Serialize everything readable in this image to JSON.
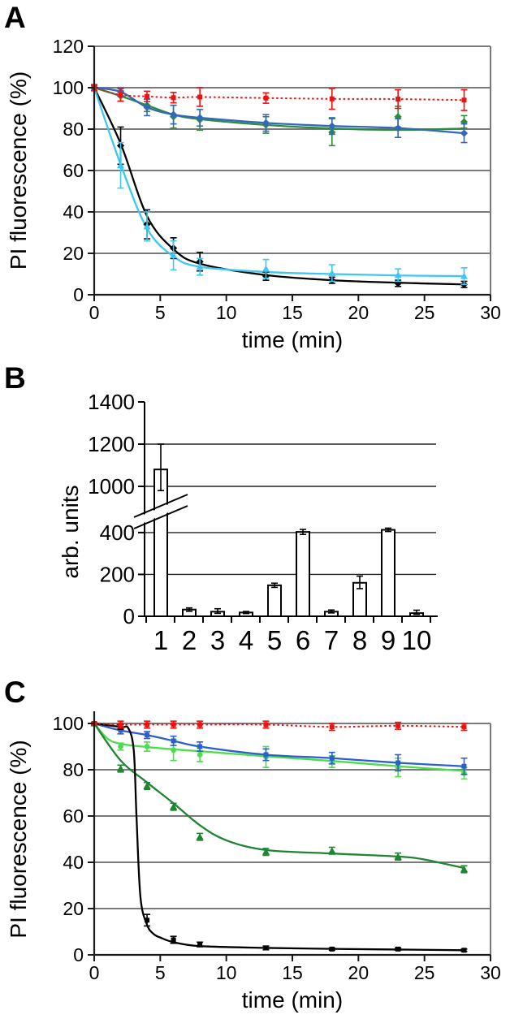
{
  "panels": {
    "a_label": "A",
    "b_label": "B",
    "c_label": "C"
  },
  "colors": {
    "grid_gray": "#7a7a7a",
    "axis_black": "#1a1a1a",
    "bar_fill": "#ffffff",
    "bar_stroke": "#000000"
  },
  "chart_data": [
    {
      "panel": "A",
      "type": "line",
      "xlabel": "time (min)",
      "ylabel": "PI fluorescence (%)",
      "xlim": [
        0,
        30
      ],
      "ylim": [
        0,
        120
      ],
      "xticks": [
        0,
        5,
        10,
        15,
        20,
        25,
        30
      ],
      "yticks": [
        0,
        20,
        40,
        60,
        80,
        100,
        120
      ],
      "grid": true,
      "x": [
        0,
        2,
        4,
        6,
        8,
        13,
        18,
        23,
        28
      ],
      "series": [
        {
          "name": "green-diamonds",
          "color": "#2E8B3A",
          "marker": "diamond",
          "line_style": "solid",
          "y": [
            100,
            96,
            91.5,
            86,
            84.5,
            82,
            78.5,
            86,
            83.5
          ],
          "err": [
            1,
            2.5,
            3,
            5.5,
            5,
            4,
            6.5,
            5,
            3
          ],
          "fit_y": [
            100,
            96,
            91.5,
            87,
            84.8,
            82,
            80.3,
            79.6,
            80.3
          ]
        },
        {
          "name": "blue-diamonds",
          "color": "#3268BE",
          "marker": "diamond",
          "line_style": "solid",
          "y": [
            100,
            98,
            90.5,
            87,
            85.5,
            83,
            81.5,
            80.5,
            78
          ],
          "err": [
            1,
            2,
            4,
            4.5,
            4,
            4,
            4,
            4.5,
            4.5
          ]
        },
        {
          "name": "black-diamonds",
          "color": "#000000",
          "marker": "diamond",
          "line_style": "solid",
          "y": [
            100,
            72,
            34,
            22.5,
            16,
            9,
            7,
            5.5,
            5
          ],
          "err": [
            0,
            9,
            7,
            5,
            4.5,
            2,
            1.5,
            1.5,
            1.5
          ],
          "fit_y": [
            100,
            73,
            38,
            22,
            15,
            9.5,
            7,
            5.8,
            5
          ]
        },
        {
          "name": "cyan-triangles",
          "color": "#3EC7F2",
          "marker": "triangle",
          "line_style": "solid",
          "y": [
            100,
            62.5,
            33,
            19,
            13.5,
            12.5,
            10.5,
            9.5,
            9
          ],
          "err": [
            0,
            11,
            7,
            7,
            4,
            4.5,
            4,
            3,
            4
          ],
          "fit_y": [
            100,
            63,
            32,
            18.5,
            13.5,
            11,
            10,
            9.3,
            9
          ]
        },
        {
          "name": "red-squares-dotted",
          "color": "#EE1111",
          "marker": "square",
          "line_style": "dotted",
          "y": [
            100,
            96.5,
            95.8,
            95.2,
            95.5,
            95,
            94.6,
            94.5,
            94
          ],
          "err": [
            1.5,
            3,
            2.5,
            2.5,
            4.5,
            2.5,
            5,
            4.5,
            5
          ]
        }
      ]
    },
    {
      "panel": "B",
      "type": "bar",
      "ylabel": "arb. units",
      "categories": [
        "1",
        "2",
        "3",
        "4",
        "5",
        "6",
        "7",
        "8",
        "9",
        "10"
      ],
      "values": [
        1080,
        32,
        22,
        18,
        148,
        403,
        22,
        160,
        413,
        15
      ],
      "err_plus": [
        120,
        8,
        14,
        5,
        10,
        12,
        8,
        32,
        8,
        14
      ],
      "err_minus": [
        100,
        8,
        8,
        5,
        10,
        12,
        6,
        28,
        8,
        6
      ],
      "yticks": [
        0,
        200,
        400,
        1000,
        1200,
        1400
      ],
      "gridline_values": [
        200,
        400,
        1000,
        1200
      ],
      "axis_break": {
        "lower_max": 450,
        "upper_min": 950
      }
    },
    {
      "panel": "C",
      "type": "line",
      "xlabel": "time (min)",
      "ylabel": "PI fluorescence (%)",
      "xlim": [
        0,
        30
      ],
      "ylim": [
        0,
        100
      ],
      "xticks": [
        0,
        5,
        10,
        15,
        20,
        25,
        30
      ],
      "yticks": [
        0,
        20,
        40,
        60,
        80,
        100
      ],
      "grid": true,
      "x": [
        0,
        2,
        4,
        6,
        8,
        13,
        18,
        23,
        28
      ],
      "series": [
        {
          "name": "light-green-circles",
          "color": "#4CDC4C",
          "marker": "circle",
          "line_style": "solid",
          "y": [
            100,
            90,
            90,
            88.5,
            86.5,
            85.5,
            83.5,
            81,
            78.5
          ],
          "err": [
            0.5,
            1.5,
            2,
            4.5,
            3,
            4.5,
            2.5,
            4,
            2.5
          ],
          "fit_x": [
            0,
            1,
            2,
            4,
            6,
            8,
            13,
            18,
            23,
            28
          ],
          "fit_y": [
            100,
            93.5,
            91.2,
            89.8,
            88.8,
            88,
            85.8,
            83.8,
            81.5,
            79.5
          ]
        },
        {
          "name": "blue-squares",
          "color": "#2B5FCE",
          "marker": "square",
          "line_style": "solid",
          "y": [
            100,
            97,
            95,
            92.5,
            90,
            86.5,
            85,
            83,
            81.5
          ],
          "err": [
            0.5,
            1.5,
            1.5,
            2,
            2,
            2.5,
            2.5,
            3.5,
            3.5
          ]
        },
        {
          "name": "dark-green-triangles",
          "color": "#1E8530",
          "marker": "triangle",
          "line_style": "solid",
          "y": [
            100,
            80.5,
            73,
            64,
            51,
            44.5,
            45,
            42.5,
            37
          ],
          "err": [
            0.5,
            1.5,
            1.5,
            1.5,
            1.5,
            1.5,
            1.5,
            1.5,
            1.5
          ],
          "fit_x": [
            0,
            2,
            4,
            6,
            8,
            10,
            13,
            18,
            23,
            25,
            28
          ],
          "fit_y": [
            100,
            84,
            74.5,
            65.5,
            56,
            49.5,
            45.3,
            43.8,
            42.5,
            41.2,
            37.5
          ]
        },
        {
          "name": "black-squares",
          "color": "#000000",
          "marker": "square",
          "line_style": "solid",
          "y": [
            100,
            98.5,
            15,
            6.5,
            4.5,
            3,
            2.5,
            2.5,
            2
          ],
          "err": [
            0,
            1,
            2.5,
            1.5,
            1,
            0.8,
            0.5,
            0.5,
            0.5
          ],
          "fit_x": [
            0,
            2,
            2.6,
            3,
            3.2,
            3.5,
            4,
            4.5,
            5,
            6,
            8,
            13,
            18,
            23,
            28
          ],
          "fit_y": [
            100,
            98.5,
            97.8,
            88,
            60,
            25,
            13,
            9,
            7.5,
            5.5,
            3.8,
            3,
            2.6,
            2.3,
            2
          ]
        },
        {
          "name": "red-squares-dotted",
          "color": "#EE1111",
          "marker": "square",
          "line_style": "dotted",
          "y": [
            100,
            99.5,
            99.5,
            99.5,
            99.5,
            99.5,
            98.5,
            99,
            98.5
          ],
          "err": [
            0.5,
            1.5,
            1.5,
            1.5,
            1.5,
            1.5,
            1.5,
            1.5,
            1.5
          ]
        }
      ]
    }
  ]
}
